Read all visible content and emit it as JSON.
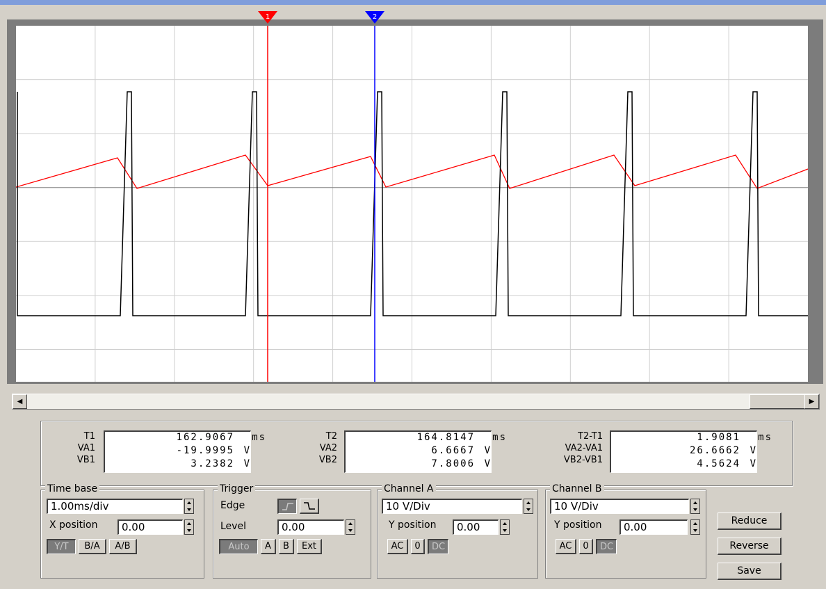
{
  "scope": {
    "grid": true,
    "time_per_div_ms": 1.0,
    "volts_per_div": 10,
    "cursor1": {
      "label": "1",
      "color": "#ff0000"
    },
    "cursor2": {
      "label": "2",
      "color": "#0000ff"
    },
    "channel_a_color": "#ff0000",
    "channel_b_color": "#000000"
  },
  "readout": {
    "t1": {
      "labels": [
        "T1",
        "VA1",
        "VB1"
      ],
      "values": [
        "162.9067",
        "-19.9995",
        "3.2382"
      ],
      "units": [
        "ms",
        "V",
        "V"
      ]
    },
    "t2": {
      "labels": [
        "T2",
        "VA2",
        "VB2"
      ],
      "values": [
        "164.8147",
        "6.6667",
        "7.8006"
      ],
      "units": [
        "ms",
        "V",
        "V"
      ]
    },
    "diff": {
      "labels": [
        "T2-T1",
        "VA2-VA1",
        "VB2-VB1"
      ],
      "values": [
        "1.9081",
        "26.6662",
        "4.5624"
      ],
      "units": [
        "ms",
        "V",
        "V"
      ]
    }
  },
  "timebase": {
    "title": "Time base",
    "value": "1.00ms/div",
    "xpos_label": "X position",
    "xpos_value": "0.00",
    "modes": [
      "Y/T",
      "B/A",
      "A/B"
    ],
    "active_mode": "Y/T"
  },
  "trigger": {
    "title": "Trigger",
    "edge_label": "Edge",
    "level_label": "Level",
    "level_value": "0.00",
    "modes": [
      "Auto",
      "A",
      "B",
      "Ext"
    ],
    "active_mode": "Auto"
  },
  "channel_a": {
    "title": "Channel A",
    "value": "10 V/Div",
    "ypos_label": "Y position",
    "ypos_value": "0.00",
    "coupling": [
      "AC",
      "0",
      "DC"
    ],
    "active_coupling": "DC"
  },
  "channel_b": {
    "title": "Channel B",
    "value": "10 V/Div",
    "ypos_label": "Y position",
    "ypos_value": "0.00",
    "coupling": [
      "AC",
      "0",
      "DC"
    ],
    "active_coupling": "DC"
  },
  "buttons": {
    "reduce": "Reduce",
    "reverse": "Reverse",
    "save": "Save"
  }
}
